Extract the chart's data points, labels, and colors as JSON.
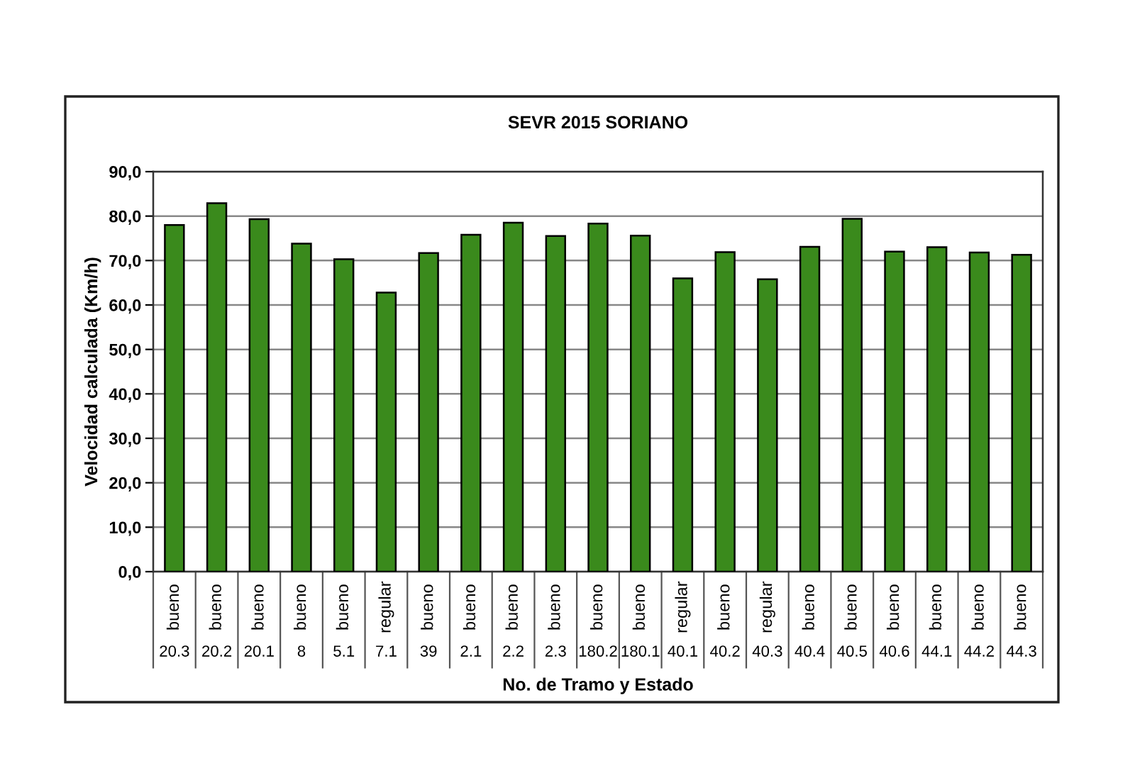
{
  "chart_data": {
    "type": "bar",
    "title": "SEVR 2015 SORIANO",
    "xlabel": "No. de Tramo y Estado",
    "ylabel": "Velocidad calculada (Km/h)",
    "categories": [
      "bueno\n20.3",
      "bueno\n20.2",
      "bueno\n20.1",
      "bueno\n8",
      "bueno\n5.1",
      "regular\n7.1",
      "bueno\n39",
      "bueno\n2.1",
      "bueno\n2.2",
      "bueno\n2.3",
      "bueno\n180.2",
      "bueno\n180.1",
      "regular\n40.1",
      "bueno\n40.2",
      "regular\n40.3",
      "bueno\n40.4",
      "bueno\n40.5",
      "bueno\n40.6",
      "bueno\n44.1",
      "bueno\n44.2",
      "bueno\n44.3"
    ],
    "values": [
      78.0,
      82.9,
      79.3,
      73.8,
      70.3,
      62.8,
      71.7,
      75.8,
      78.5,
      75.5,
      78.3,
      75.6,
      66.0,
      71.9,
      65.8,
      73.1,
      79.4,
      72.0,
      73.0,
      71.8,
      71.3
    ],
    "color": "#3a8a1c",
    "ylim": [
      0,
      90
    ],
    "yticks": [
      {
        "value": 0,
        "label": "0,0"
      },
      {
        "value": 10,
        "label": "10,0"
      },
      {
        "value": 20,
        "label": "20,0"
      },
      {
        "value": 30,
        "label": "30,0"
      },
      {
        "value": 40,
        "label": "40,0"
      },
      {
        "value": 50,
        "label": "50,0"
      },
      {
        "value": 60,
        "label": "60,0"
      },
      {
        "value": 70,
        "label": "70,0"
      },
      {
        "value": 80,
        "label": "80,0"
      },
      {
        "value": 90,
        "label": "90,0"
      }
    ],
    "grid": "y"
  }
}
